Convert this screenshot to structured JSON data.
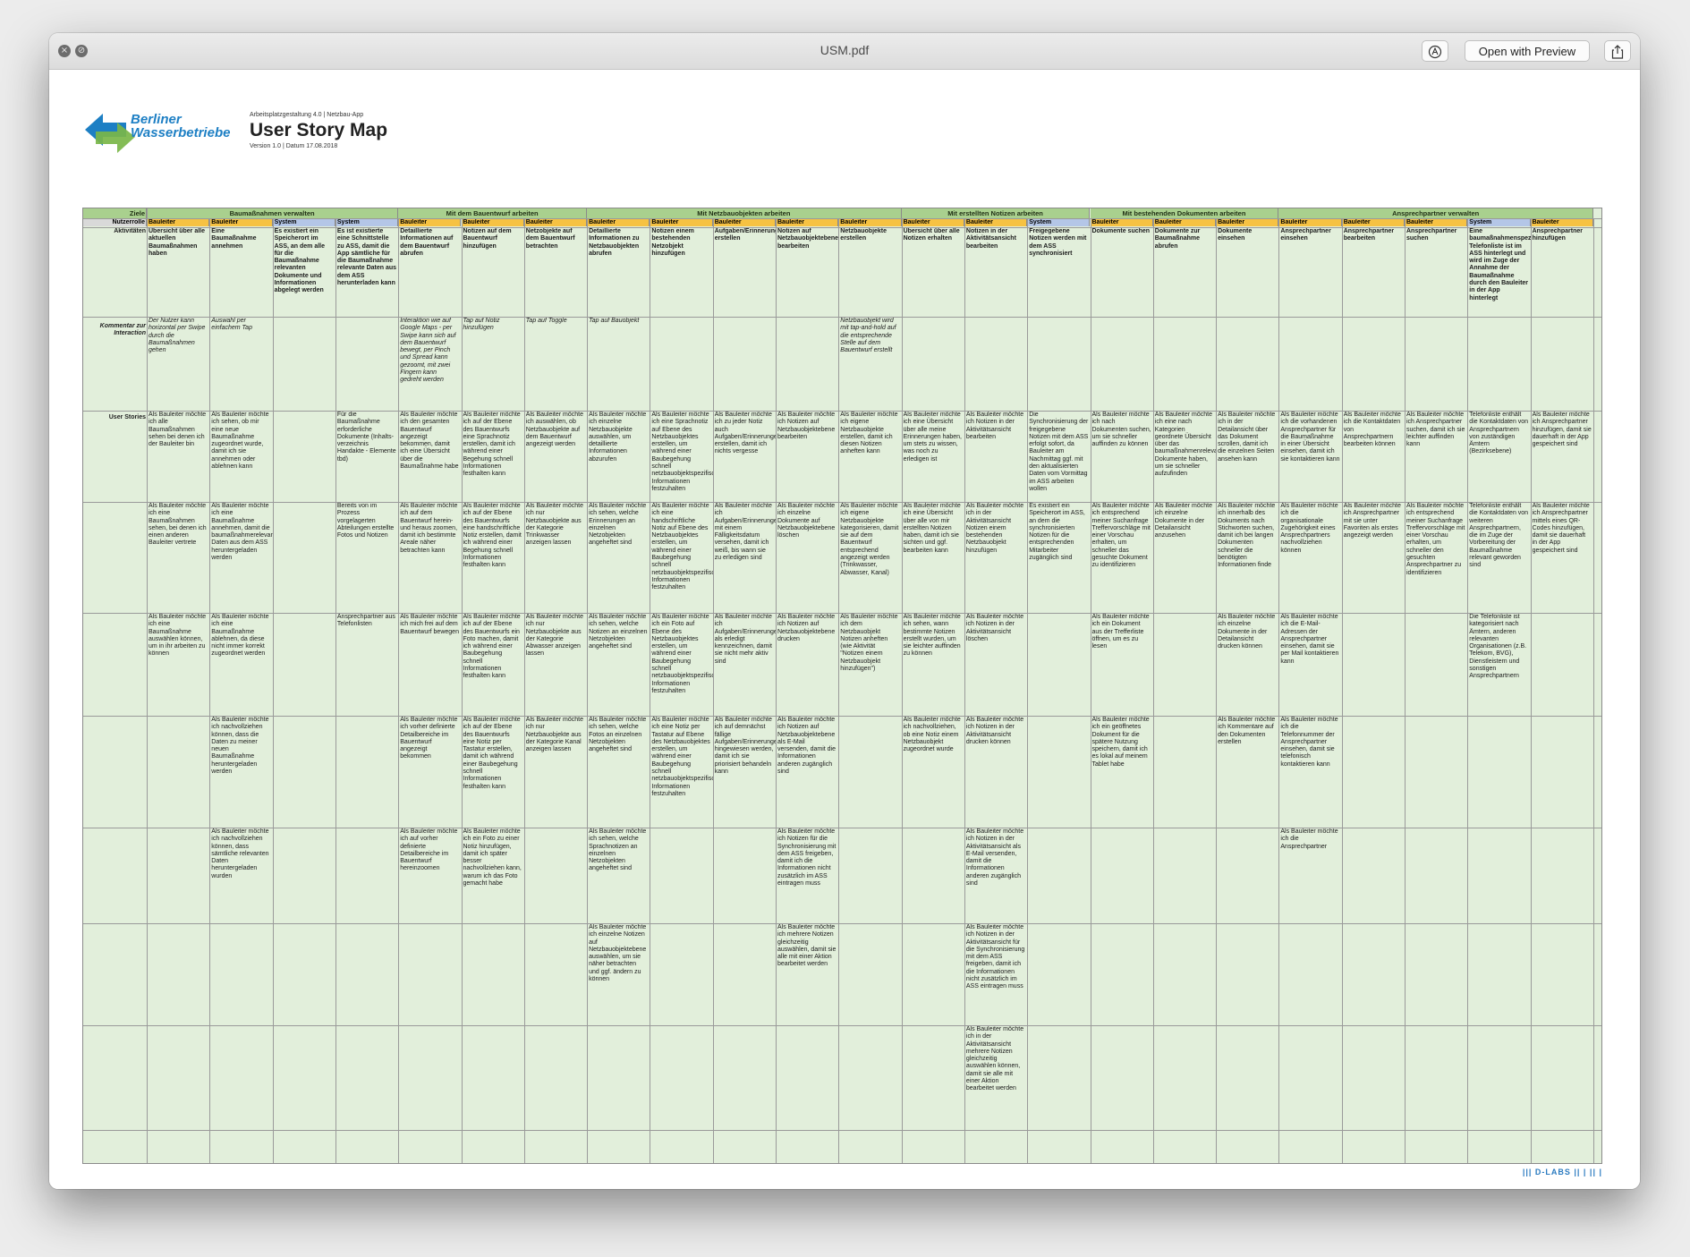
{
  "window": {
    "title": "USM.pdf",
    "open_with_label": "Open with Preview",
    "close_glyph": "×",
    "minimize_glyph": "⊘",
    "markup_icon": "markup-icon",
    "share_icon": "share-icon"
  },
  "header": {
    "brand_line1": "Berliner",
    "brand_line2": "Wasserbetriebe",
    "meta_line1": "Arbeitsplatzgestaltung 4.0 | Netzbau-App",
    "title": "User Story Map",
    "meta_line2": "Version 1.0 | Datum 17.08.2018",
    "brand_color": "#1d7fc4"
  },
  "labels": {
    "goals": "Ziele",
    "role": "Nutzerrolle",
    "activities": "Aktivitäten",
    "comment": "Kommentar zur Interaction",
    "stories": "User Stories"
  },
  "goals": [
    "Baumaßnahmen verwalten",
    "Mit dem Bauentwurf arbeiten",
    "Mit Netzbauobjekten arbeiten",
    "Mit erstellten Notizen arbeiten",
    "Mit bestehenden Dokumenten arbeiten",
    "Ansprechpartner verwalten"
  ],
  "columns": [
    {
      "role": "Bauleiter",
      "activity": "Übersicht über alle aktuellen Baumaßnahmen haben",
      "comment": "Der Nutzer kann horizontal per Swipe durch die Baumaßnahmen gehen",
      "stories": [
        "Als Bauleiter möchte ich alle Baumaßnahmen sehen bei denen ich der Bauleiter bin",
        "Als Bauleiter möchte ich eine Baumaßnahmen sehen, bei denen ich einen anderen Bauleiter vertrete",
        "Als Bauleiter möchte ich eine Baumaßnahme auswählen können, um in ihr arbeiten zu können",
        "",
        "",
        "",
        "",
        ""
      ]
    },
    {
      "role": "Bauleiter",
      "activity": "Eine Baumaßnahme annehmen",
      "comment": "Auswahl per einfachem Tap",
      "stories": [
        "Als Bauleiter möchte ich sehen, ob mir eine neue Baumaßnahme zugeordnet wurde, damit ich sie annehmen oder ablehnen kann",
        "Als Bauleiter möchte ich eine Baumaßnahme annehmen, damit die baumaßnahmerelevanten Daten aus dem ASS heruntergeladen werden",
        "Als Bauleiter möchte ich eine Baumaßnahme ablehnen, da diese nicht immer korrekt zugeordnet werden",
        "Als Bauleiter möchte ich nachvollziehen können, dass die Daten zu meiner neuen Baumaßnahme heruntergeladen werden",
        "Als Bauleiter möchte ich nachvollziehen können, dass sämtliche relevanten Daten heruntergeladen wurden",
        "",
        "",
        ""
      ]
    },
    {
      "role": "System",
      "activity": "Es existiert ein Speicherort im ASS, an dem alle für die Baumaßnahme relevanten Dokumente und Informationen abgelegt werden",
      "comment": "",
      "stories": [
        "",
        "",
        "",
        "",
        "",
        "",
        "",
        ""
      ]
    },
    {
      "role": "System",
      "activity": "Es ist existierte eine Schnittstelle zu ASS, damit die App sämtliche für die Baumaßnahme relevante Daten aus dem ASS herunterladen kann",
      "comment": "",
      "stories": [
        "Für die Baumaßnahme erforderliche Dokumente (Inhalts-verzeichnis Handakte - Elemente tbd)",
        "Bereits von im Prozess vorgelagerten Abteilungen erstellte Fotos und Notizen",
        "Ansprechpartner aus Telefonlisten",
        "",
        "",
        "",
        "",
        ""
      ]
    },
    {
      "role": "Bauleiter",
      "activity": "Detaillierte Informationen auf dem Bauentwurf abrufen",
      "comment": "Interaktion wie auf Google Maps - per Swipe kann sich auf dem Bauentwurf bewegt, per Pinch und Spread kann gezoomt, mit zwei Fingern kann gedreht werden",
      "stories": [
        "Als Bauleiter möchte ich den gesamten Bauentwurf angezeigt bekommen, damit ich eine Übersicht über die Baumaßnahme habe",
        "Als Bauleiter möchte ich auf dem Bauentwurf herein- und heraus zoomen, damit ich bestimmte Areale näher betrachten kann",
        "Als Bauleiter möchte ich mich frei auf dem Bauentwurf bewegen",
        "Als Bauleiter möchte ich vorher definierte Detailbereiche im Bauentwurf angezeigt bekommen",
        "Als Bauleiter möchte ich auf vorher definierte Detailbereiche im Bauentwurf hereinzoomen",
        "",
        "",
        ""
      ]
    },
    {
      "role": "Bauleiter",
      "activity": "Notizen auf dem Bauentwurf hinzufügen",
      "comment": "Tap auf Notiz hinzufügen",
      "stories": [
        "Als Bauleiter möchte ich auf der Ebene des Bauentwurfs eine Sprachnotiz erstellen, damit ich während einer Begehung schnell Informationen festhalten kann",
        "Als Bauleiter möchte ich auf der Ebene des Bauentwurfs eine handschriftliche Notiz erstellen, damit ich während einer Begehung schnell Informationen festhalten kann",
        "Als Bauleiter möchte ich auf der Ebene des Bauentwurfs ein Foto machen, damit ich während einer Baubegehung schnell Informationen festhalten kann",
        "Als Bauleiter möchte ich auf der Ebene des Bauentwurfs eine Notiz per Tastatur erstellen, damit ich während einer Baubegehung schnell Informationen festhalten kann",
        "Als Bauleiter möchte ich ein Foto zu einer Notiz hinzufügen, damit ich später besser nachvollziehen kann, warum ich das Foto gemacht habe",
        "",
        "",
        ""
      ]
    },
    {
      "role": "Bauleiter",
      "activity": "Netzobjekte auf dem Bauentwurf betrachten",
      "comment": "Tap auf Toggle",
      "stories": [
        "Als Bauleiter möchte ich auswählen, ob Netzbauobjekte auf dem Bauentwurf angezeigt werden",
        "Als Bauleiter möchte ich nur Netzbauobjekte aus der Kategorie Trinkwasser anzeigen lassen",
        "Als Bauleiter möchte ich nur Netzbauobjekte aus der Kategorie Abwasser anzeigen lassen",
        "Als Bauleiter möchte ich nur Netzbauobjekte aus der Kategorie Kanal anzeigen lassen",
        "",
        "",
        "",
        ""
      ]
    },
    {
      "role": "Bauleiter",
      "activity": "Detaillierte Informationen zu Netzbauobjekten abrufen",
      "comment": "Tap auf Bauobjekt",
      "stories": [
        "Als Bauleiter möchte ich einzelne Netzbauobjekte auswählen, um detaillierte Informationen abzurufen",
        "Als Bauleiter möchte ich sehen, welche Erinnerungen an einzelnen Netzobjekten angeheftet sind",
        "Als Bauleiter möchte ich sehen, welche Notizen an einzelnen Netzobjekten angeheftet sind",
        "Als Bauleiter möchte ich sehen, welche Fotos an einzelnen Netzobjekten angeheftet sind",
        "Als Bauleiter möchte ich sehen, welche Sprachnotizen an einzelnen Netzobjekten angeheftet sind",
        "Als Bauleiter möchte ich einzelne Notizen auf Netzbauobjektebene auswählen, um sie näher betrachten und ggf. ändern zu können",
        "",
        ""
      ]
    },
    {
      "role": "Bauleiter",
      "activity": "Notizen einem bestehenden Netzobjekt hinzufügen",
      "comment": "",
      "stories": [
        "Als Bauleiter möchte ich eine Sprachnotiz auf Ebene des Netzbauobjektes erstellen, um während einer Baubegehung schnell netzbauobjektspezifische Informationen festzuhalten",
        "Als Bauleiter möchte ich eine handschriftliche Notiz auf Ebene des Netzbauobjektes erstellen, um während einer Baubegehung schnell netzbauobjektspezifische Informationen festzuhalten",
        "Als Bauleiter möchte ich ein Foto auf Ebene des Netzbauobjektes erstellen, um während einer Baubegehung schnell netzbauobjektspezifische Informationen festzuhalten",
        "Als Bauleiter möchte ich eine Notiz per Tastatur auf Ebene des Netzbauobjektes erstellen, um während einer Baubegehung schnell netzbauobjektspezifische Informationen festzuhalten",
        "",
        "",
        "",
        ""
      ]
    },
    {
      "role": "Bauleiter",
      "activity": "Aufgaben/Erinnerungen erstellen",
      "comment": "",
      "stories": [
        "Als Bauleiter möchte ich zu jeder Notiz auch Aufgaben/Erinnerungen erstellen, damit ich nichts vergesse",
        "Als Bauleiter möchte ich Aufgaben/Erinnerungen mit einem Fälligkeitsdatum versehen, damit ich weiß, bis wann sie zu erledigen sind",
        "Als Bauleiter möchte ich Aufgaben/Erinnerungen als erledigt kennzeichnen, damit sie nicht mehr aktiv sind",
        "Als Bauleiter möchte ich auf demnächst fällige Aufgaben/Erinnerungen hingewiesen werden, damit ich sie priorisiert behandeln kann",
        "",
        "",
        "",
        ""
      ]
    },
    {
      "role": "Bauleiter",
      "activity": "Notizen auf Netzbauobjektebene bearbeiten",
      "comment": "",
      "stories": [
        "Als Bauleiter möchte ich Notizen auf Netzbauobjektebene bearbeiten",
        "Als Bauleiter möchte ich einzelne Dokumente auf Netzbauobjektebene löschen",
        "Als Bauleiter möchte ich Notizen auf Netzbauobjektebene drucken",
        "Als Bauleiter möchte ich Notizen auf Netzbauobjektebene als E-Mail versenden, damit die Informationen anderen zugänglich sind",
        "Als Bauleiter möchte ich Notizen für die Synchronisierung mit dem ASS freigeben, damit ich die Informationen nicht zusätzlich im ASS eintragen muss",
        "Als Bauleiter möchte ich mehrere Notizen gleichzeitig auswählen, damit sie alle mit einer Aktion bearbeitet werden",
        "",
        ""
      ]
    },
    {
      "role": "Bauleiter",
      "activity": "Netzbauobjekte erstellen",
      "comment": "Netzbauobjekt wird mit tap-and-hold auf die entsprechende Stelle auf dem Bauentwurf erstellt",
      "stories": [
        "Als Bauleiter möchte ich eigene Netzbauobjekte erstellen, damit ich diesen Notizen anheften kann",
        "Als Bauleiter möchte ich eigene Netzbauobjekte kategorisieren, damit sie auf dem Bauentwurf entsprechend angezeigt werden (Trinkwasser, Abwasser, Kanal)",
        "Als Bauleiter möchte ich dem Netzbauobjekt Notizen anheften (wie Aktivität \"Notizen einem Netzbauobjekt hinzufügen\")",
        "",
        "",
        "",
        "",
        ""
      ]
    },
    {
      "role": "Bauleiter",
      "activity": "Übersicht über alle Notizen erhalten",
      "comment": "",
      "stories": [
        "Als Bauleiter möchte ich eine Übersicht über alle meine Erinnerungen haben, um stets zu wissen, was noch zu erledigen ist",
        "Als Bauleiter möchte ich eine Übersicht über alle von mir erstellten Notizen haben, damit ich sie sichten und ggf. bearbeiten kann",
        "Als Bauleiter möchte ich sehen, wann bestimmte Notizen erstellt wurden, um sie leichter auffinden zu können",
        "Als Bauleiter möchte ich nachvollziehen, ob eine Notiz einem Netzbauobjekt zugeordnet wurde",
        "",
        "",
        "",
        ""
      ]
    },
    {
      "role": "Bauleiter",
      "activity": "Notizen in der Aktivitätsansicht bearbeiten",
      "comment": "",
      "stories": [
        "Als Bauleiter möchte ich Notizen in der Aktivitätsansicht bearbeiten",
        "Als Bauleiter möchte ich in der Aktivitätsansicht Notizen einem bestehenden Netzbauobjekt hinzufügen",
        "Als Bauleiter möchte ich Notizen in der Aktivitätsansicht löschen",
        "Als Bauleiter möchte ich Notizen in der Aktivitätsansicht drucken können",
        "Als Bauleiter möchte ich Notizen in der Aktivitätsansicht als E-Mail versenden, damit die Informationen anderen zugänglich sind",
        "Als Bauleiter möchte ich Notizen in der Aktivitätsansicht für die Synchronisierung mit dem ASS freigeben, damit ich die Informationen nicht zusätzlich im ASS eintragen muss",
        "Als Bauleiter möchte ich in der Aktivitätsansicht mehrere Notizen gleichzeitig auswählen können, damit sie alle mit einer Aktion bearbeitet werden",
        ""
      ]
    },
    {
      "role": "System",
      "activity": "Freigegebene Notizen werden mit dem ASS synchronisiert",
      "comment": "",
      "stories": [
        "Die Synchronisierung der freigegebene Notizen mit dem ASS erfolgt sofort, da Bauleiter am Nachmittag ggf. mit den aktualisierten Daten vom Vormittag im ASS arbeiten wollen",
        "Es existiert ein Speicherort im ASS, an dem die synchronisierten Notizen für die entsprechenden Mitarbeiter zugänglich sind",
        "",
        "",
        "",
        "",
        "",
        ""
      ]
    },
    {
      "role": "Bauleiter",
      "activity": "Dokumente suchen",
      "comment": "",
      "stories": [
        "Als Bauleiter möchte ich nach Dokumenten suchen, um sie schneller auffinden zu können",
        "Als Bauleiter möchte ich entsprechend meiner Suchanfrage Treffervorschläge mit einer Vorschau erhalten, um schneller das gesuchte Dokument zu identifizieren",
        "Als Bauleiter möchte ich ein Dokument aus der Trefferliste öffnen, um es zu lesen",
        "Als Bauleiter möchte ich ein geöffnetes Dokument für die spätere Nutzung speichern, damit ich es lokal auf meinem Tablet habe",
        "",
        "",
        "",
        ""
      ]
    },
    {
      "role": "Bauleiter",
      "activity": "Dokumente zur Baumaßnahme abrufen",
      "comment": "",
      "stories": [
        "Als Bauleiter möchte ich eine nach Kategorien geordnete Übersicht über das baumaßnahmenrelevante Dokumente haben, um sie schneller aufzufinden",
        "Als Bauleiter möchte ich einzelne Dokumente in der Detailansicht anzusehen",
        "",
        "",
        "",
        "",
        "",
        ""
      ]
    },
    {
      "role": "Bauleiter",
      "activity": "Dokumente einsehen",
      "comment": "",
      "stories": [
        "Als Bauleiter möchte ich in der Detailansicht über das Dokument scrollen, damit ich die einzelnen Seiten ansehen kann",
        "Als Bauleiter möchte ich innerhalb des Dokuments nach Stichworten suchen, damit ich bei langen Dokumenten schneller die benötigten Informationen finde",
        "Als Bauleiter möchte ich einzelne Dokumente in der Detailansicht drucken können",
        "Als Bauleiter möchte ich Kommentare auf den Dokumenten erstellen",
        "",
        "",
        "",
        ""
      ]
    },
    {
      "role": "Bauleiter",
      "activity": "Ansprechpartner einsehen",
      "comment": "",
      "stories": [
        "Als Bauleiter möchte ich die vorhandenen Ansprechpartner für die Baumaßnahme in einer Übersicht einsehen, damit ich sie kontaktieren kann",
        "Als Bauleiter möchte ich die organisationale Zugehörigkeit eines Ansprechpartners nachvollziehen können",
        "Als Bauleiter möchte ich die E-Mail-Adressen der Ansprechpartner einsehen, damit sie per Mail kontaktieren kann",
        "Als Bauleiter möchte ich die Telefonnummer der Ansprechpartner einsehen, damit sie telefonisch kontaktieren kann",
        "Als Bauleiter möchte ich die Ansprechpartner",
        "",
        "",
        ""
      ]
    },
    {
      "role": "Bauleiter",
      "activity": "Ansprechpartner bearbeiten",
      "comment": "",
      "stories": [
        "Als Bauleiter möchte ich die Kontaktdaten von Ansprechpartnern bearbeiten können",
        "Als Bauleiter möchte ich Ansprechpartner mit sie unter Favoriten als erstes angezeigt werden",
        "",
        "",
        "",
        "",
        "",
        ""
      ]
    },
    {
      "role": "Bauleiter",
      "activity": "Ansprechpartner suchen",
      "comment": "",
      "stories": [
        "Als Bauleiter möchte ich Ansprechpartner suchen, damit ich sie leichter auffinden kann",
        "Als Bauleiter möchte ich entsprechend meiner Suchanfrage Treffervorschläge mit einer Vorschau erhalten, um schneller den gesuchten Ansprechpartner zu identifizieren",
        "",
        "",
        "",
        "",
        "",
        ""
      ]
    },
    {
      "role": "System",
      "activity": "Eine baumaßnahmenspezifische Telefonliste ist im ASS hinterlegt und wird im Zuge der Annahme der Baumaßnahme durch den Bauleiter in der App hinterlegt",
      "comment": "",
      "stories": [
        "Telefonliste enthält die Kontaktdaten von Ansprechpartnern von zuständigen Ämtern (Bezirksebene)",
        "Telefonliste enthält die Kontaktdaten von weiteren Ansprechpartnern, die im Zuge der Vorbereitung der Baumaßnahme relevant geworden sind",
        "Die Telefonliste ist kategorisiert nach Ämtern, anderen relevanten Organisationen (z.B. Telekom, BVG), Dienstleistern und sonstigen Ansprechpartnern",
        "",
        "",
        "",
        "",
        ""
      ]
    },
    {
      "role": "Bauleiter",
      "activity": "Ansprechpartner hinzufügen",
      "comment": "",
      "stories": [
        "Als Bauleiter möchte ich Ansprechpartner hinzufügen, damit sie dauerhaft in der App gespeichert sind",
        "Als Bauleiter möchte ich Ansprechpartner mittels eines QR-Codes hinzufügen, damit sie dauerhaft in der App gespeichert sind",
        "",
        "",
        "",
        "",
        "",
        ""
      ]
    }
  ],
  "footer": "||| D-LABS || | || |",
  "colors": {
    "goal_bg": "#a9d08e",
    "bauleiter_bg": "#f6c243",
    "system_bg": "#b4c6e7",
    "cell_bg": "#e2efdb"
  }
}
